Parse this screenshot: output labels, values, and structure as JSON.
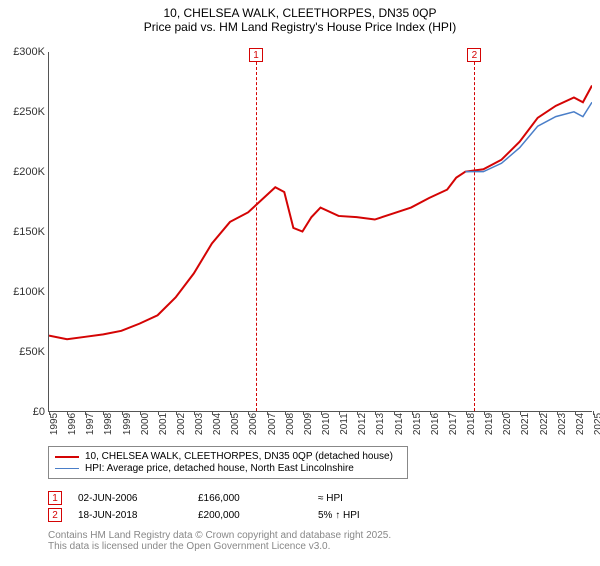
{
  "title_line1": "10, CHELSEA WALK, CLEETHORPES, DN35 0QP",
  "title_line2": "Price paid vs. HM Land Registry's House Price Index (HPI)",
  "chart": {
    "type": "line",
    "background_color": "#ffffff",
    "grid_color": "#e0e0e0",
    "axis_color": "#555555",
    "tick_fontsize": 10,
    "y": {
      "min": 0,
      "max": 300000,
      "step": 50000,
      "labels": [
        "£0",
        "£50K",
        "£100K",
        "£150K",
        "£200K",
        "£250K",
        "£300K"
      ]
    },
    "x": {
      "min": 1995,
      "max": 2025,
      "step": 1,
      "labels": [
        "1995",
        "1996",
        "1997",
        "1998",
        "1999",
        "2000",
        "2001",
        "2002",
        "2003",
        "2004",
        "2005",
        "2006",
        "2007",
        "2008",
        "2009",
        "2010",
        "2011",
        "2012",
        "2013",
        "2014",
        "2015",
        "2016",
        "2017",
        "2018",
        "2019",
        "2020",
        "2021",
        "2022",
        "2023",
        "2024",
        "2025"
      ]
    },
    "series": [
      {
        "name": "10, CHELSEA WALK, CLEETHORPES, DN35 0QP (detached house)",
        "color": "#d40404",
        "line_width": 2,
        "points": [
          [
            1995,
            63000
          ],
          [
            1996,
            60000
          ],
          [
            1997,
            62000
          ],
          [
            1998,
            64000
          ],
          [
            1999,
            67000
          ],
          [
            2000,
            73000
          ],
          [
            2001,
            80000
          ],
          [
            2002,
            95000
          ],
          [
            2003,
            115000
          ],
          [
            2004,
            140000
          ],
          [
            2005,
            158000
          ],
          [
            2006,
            166000
          ],
          [
            2006.5,
            173000
          ],
          [
            2007,
            180000
          ],
          [
            2007.5,
            187000
          ],
          [
            2008,
            183000
          ],
          [
            2008.5,
            153000
          ],
          [
            2009,
            150000
          ],
          [
            2009.5,
            162000
          ],
          [
            2010,
            170000
          ],
          [
            2011,
            163000
          ],
          [
            2012,
            162000
          ],
          [
            2013,
            160000
          ],
          [
            2014,
            165000
          ],
          [
            2015,
            170000
          ],
          [
            2016,
            178000
          ],
          [
            2017,
            185000
          ],
          [
            2017.5,
            195000
          ],
          [
            2018,
            200000
          ],
          [
            2019,
            202000
          ],
          [
            2020,
            210000
          ],
          [
            2021,
            225000
          ],
          [
            2022,
            245000
          ],
          [
            2023,
            255000
          ],
          [
            2024,
            262000
          ],
          [
            2024.5,
            258000
          ],
          [
            2025,
            272000
          ]
        ]
      },
      {
        "name": "HPI: Average price, detached house, North East Lincolnshire",
        "color": "#4a7ec8",
        "line_width": 1.5,
        "points": [
          [
            2018,
            200000
          ],
          [
            2019,
            200000
          ],
          [
            2020,
            207000
          ],
          [
            2021,
            220000
          ],
          [
            2022,
            238000
          ],
          [
            2023,
            246000
          ],
          [
            2024,
            250000
          ],
          [
            2024.5,
            246000
          ],
          [
            2025,
            258000
          ]
        ]
      }
    ],
    "markers": [
      {
        "label": "1",
        "x": 2006.42,
        "color": "#d40404"
      },
      {
        "label": "2",
        "x": 2018.46,
        "color": "#d40404"
      }
    ]
  },
  "legend": {
    "items": [
      {
        "color": "#d40404",
        "width": 2,
        "label": "10, CHELSEA WALK, CLEETHORPES, DN35 0QP (detached house)"
      },
      {
        "color": "#4a7ec8",
        "width": 1.5,
        "label": "HPI: Average price, detached house, North East Lincolnshire"
      }
    ]
  },
  "sales": [
    {
      "marker": "1",
      "marker_color": "#d40404",
      "date": "02-JUN-2006",
      "price": "£166,000",
      "hpi": "≈ HPI"
    },
    {
      "marker": "2",
      "marker_color": "#d40404",
      "date": "18-JUN-2018",
      "price": "£200,000",
      "hpi": "5% ↑ HPI"
    }
  ],
  "credit_line1": "Contains HM Land Registry data © Crown copyright and database right 2025.",
  "credit_line2": "This data is licensed under the Open Government Licence v3.0."
}
